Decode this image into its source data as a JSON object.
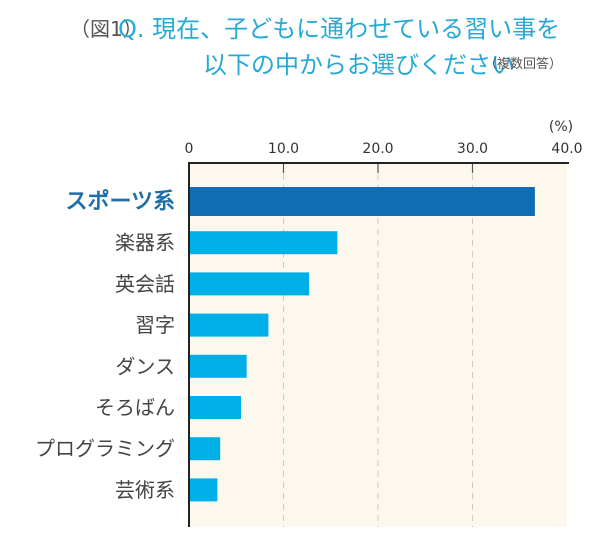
{
  "title": {
    "figure_label": "（図1）",
    "line1": "Q. 現在、子どもに通わせている習い事を",
    "line2": "以下の中からお選びください",
    "note": "（複数回答）"
  },
  "colors": {
    "highlight_bar": "#0f6db3",
    "bar": "#00aee8",
    "plot_bg": "#fcf8ee",
    "title": "#27a9d6",
    "highlight_label": "#1f6ea6"
  },
  "chart_data": {
    "type": "bar",
    "orientation": "horizontal",
    "title": "Q. 現在、子どもに通わせている習い事を以下の中からお選びください（複数回答）",
    "unit_label": "(%)",
    "xlim": [
      0,
      40
    ],
    "x_ticks": [
      "0",
      "10.0",
      "20.0",
      "30.0",
      "40.0"
    ],
    "x_tick_values": [
      0,
      10,
      20,
      30,
      40
    ],
    "grid": "vertical dashed",
    "categories": [
      "スポーツ系",
      "楽器系",
      "英会話",
      "習字",
      "ダンス",
      "そろばん",
      "プログラミング",
      "芸術系"
    ],
    "values": [
      36.6,
      15.7,
      12.7,
      8.4,
      6.1,
      5.5,
      3.3,
      3.0
    ],
    "highlighted_category": "スポーツ系"
  }
}
